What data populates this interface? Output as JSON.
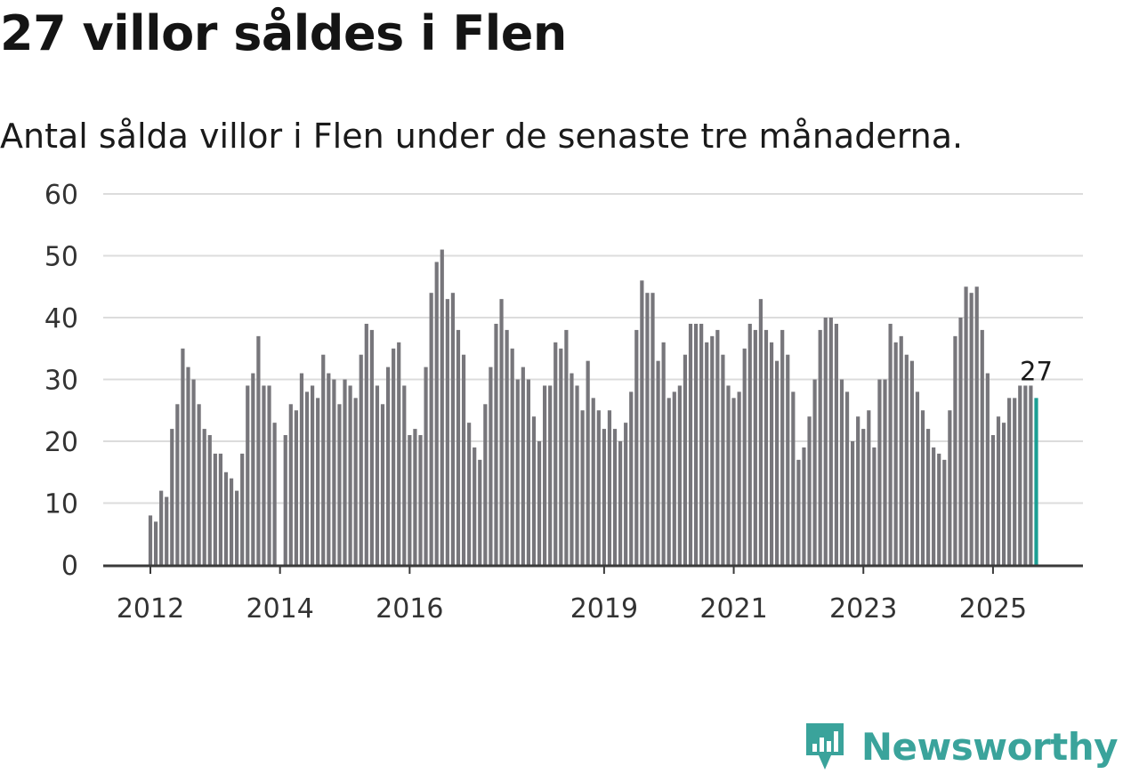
{
  "header": {
    "title": "27 villor såldes i Flen",
    "subtitle": "Antal sålda villor i Flen under de senaste tre månaderna."
  },
  "brand": {
    "name": "Newsworthy",
    "icon": "newsworthy-logo-icon",
    "color": "#3aa39b"
  },
  "chart_data": {
    "type": "bar",
    "title": "27 villor såldes i Flen",
    "subtitle": "Antal sålda villor i Flen under de senaste tre månaderna.",
    "xlabel": "",
    "ylabel": "",
    "ylim": [
      0,
      60
    ],
    "y_ticks": [
      0,
      10,
      20,
      30,
      40,
      50,
      60
    ],
    "x_ticks": [
      {
        "label": "2012",
        "index": 0
      },
      {
        "label": "2014",
        "index": 24
      },
      {
        "label": "2016",
        "index": 48
      },
      {
        "label": "2019",
        "index": 84
      },
      {
        "label": "2021",
        "index": 108
      },
      {
        "label": "2023",
        "index": 132
      },
      {
        "label": "2025",
        "index": 156
      }
    ],
    "grid": true,
    "bar_color": "#77767b",
    "highlight_color": "#1b9e93",
    "highlight_label": "27",
    "values": [
      8,
      7,
      12,
      11,
      22,
      26,
      35,
      32,
      30,
      26,
      22,
      21,
      18,
      18,
      15,
      14,
      12,
      18,
      29,
      31,
      37,
      29,
      29,
      23,
      null,
      21,
      26,
      25,
      31,
      28,
      29,
      27,
      34,
      31,
      30,
      26,
      30,
      29,
      27,
      34,
      39,
      38,
      29,
      26,
      32,
      35,
      36,
      29,
      21,
      22,
      21,
      32,
      44,
      49,
      51,
      43,
      44,
      38,
      34,
      23,
      19,
      17,
      26,
      32,
      39,
      43,
      38,
      35,
      30,
      32,
      30,
      24,
      20,
      29,
      29,
      36,
      35,
      38,
      31,
      29,
      25,
      33,
      27,
      25,
      22,
      25,
      22,
      20,
      23,
      28,
      38,
      46,
      44,
      44,
      33,
      36,
      27,
      28,
      29,
      34,
      39,
      39,
      39,
      36,
      37,
      38,
      34,
      29,
      27,
      28,
      35,
      39,
      38,
      43,
      38,
      36,
      33,
      38,
      34,
      28,
      17,
      19,
      24,
      30,
      38,
      40,
      40,
      39,
      30,
      28,
      20,
      24,
      22,
      25,
      19,
      30,
      30,
      39,
      36,
      37,
      34,
      33,
      28,
      25,
      22,
      19,
      18,
      17,
      25,
      37,
      40,
      45,
      44,
      45,
      38,
      31,
      21,
      24,
      23,
      27,
      27,
      29,
      29,
      29,
      27
    ]
  }
}
